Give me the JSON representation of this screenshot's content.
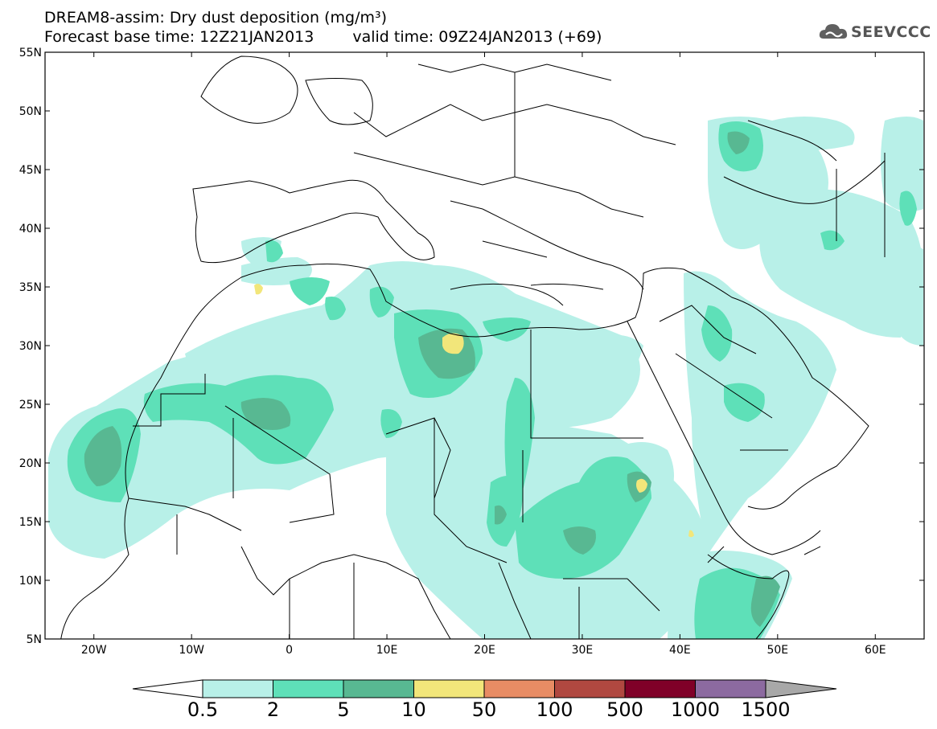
{
  "title": {
    "line1": "DREAM8-assim: Dry dust deposition (mg/m³)",
    "base": "Forecast base time: 12Z21JAN2013",
    "valid": "valid time: 09Z24JAN2013 (+69)"
  },
  "logo": {
    "text": "SEEVCCC",
    "icon": "cloud-icon"
  },
  "axes": {
    "lat_ticks": [
      "55N",
      "50N",
      "45N",
      "40N",
      "35N",
      "30N",
      "25N",
      "20N",
      "15N",
      "10N",
      "5N"
    ],
    "lon_ticks": [
      "20W",
      "10W",
      "0",
      "10E",
      "20E",
      "30E",
      "40E",
      "50E",
      "60E"
    ],
    "lon_range": [
      -25,
      65
    ],
    "lat_range": [
      5,
      55
    ]
  },
  "colorbar": {
    "labels": [
      "0.5",
      "2",
      "5",
      "10",
      "50",
      "100",
      "500",
      "1000",
      "1500"
    ],
    "colors": [
      "#ffffff",
      "#b8f0e8",
      "#5ee0b8",
      "#58b892",
      "#f2e67a",
      "#e88c64",
      "#b04840",
      "#800028",
      "#8c6aa0",
      "#a8a8a8"
    ]
  }
}
